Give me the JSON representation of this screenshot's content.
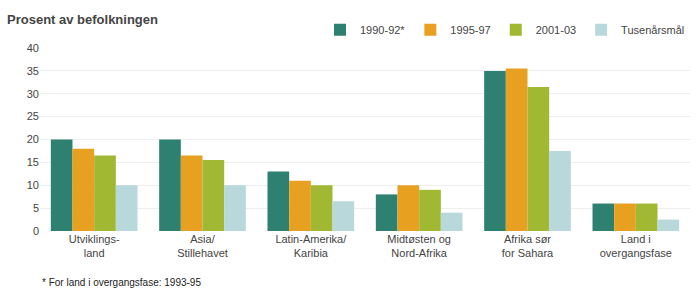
{
  "chart_data": {
    "type": "bar",
    "title": "Prosent av befolkningen",
    "categories": [
      "Utviklings-\nland",
      "Asia/\nStillehavet",
      "Latin-Amerika/\nKaribia",
      "Midtøsten og\nNord-Afrika",
      "Afrika sør\nfor Sahara",
      "Land i\novergangsfase"
    ],
    "series": [
      {
        "name": "1990-92*",
        "color": "#2e8070",
        "values": [
          20,
          20,
          13,
          8,
          35,
          6
        ]
      },
      {
        "name": "1995-97",
        "color": "#e8a020",
        "values": [
          18,
          16.5,
          11,
          10,
          35.5,
          6
        ]
      },
      {
        "name": "2001-03",
        "color": "#a0b832",
        "values": [
          16.5,
          15.5,
          10,
          9,
          31.5,
          6
        ]
      },
      {
        "name": "Tusenårsmål",
        "color": "#b8d8dc",
        "values": [
          10,
          10,
          6.5,
          4,
          17.5,
          2.5
        ]
      }
    ],
    "ylim": [
      0,
      40
    ],
    "yticks": [
      0,
      5,
      10,
      15,
      20,
      25,
      30,
      35,
      40
    ],
    "grid": true,
    "legend": "top",
    "annotations": [
      "* For land i overgangsfase: 1993-95"
    ]
  }
}
